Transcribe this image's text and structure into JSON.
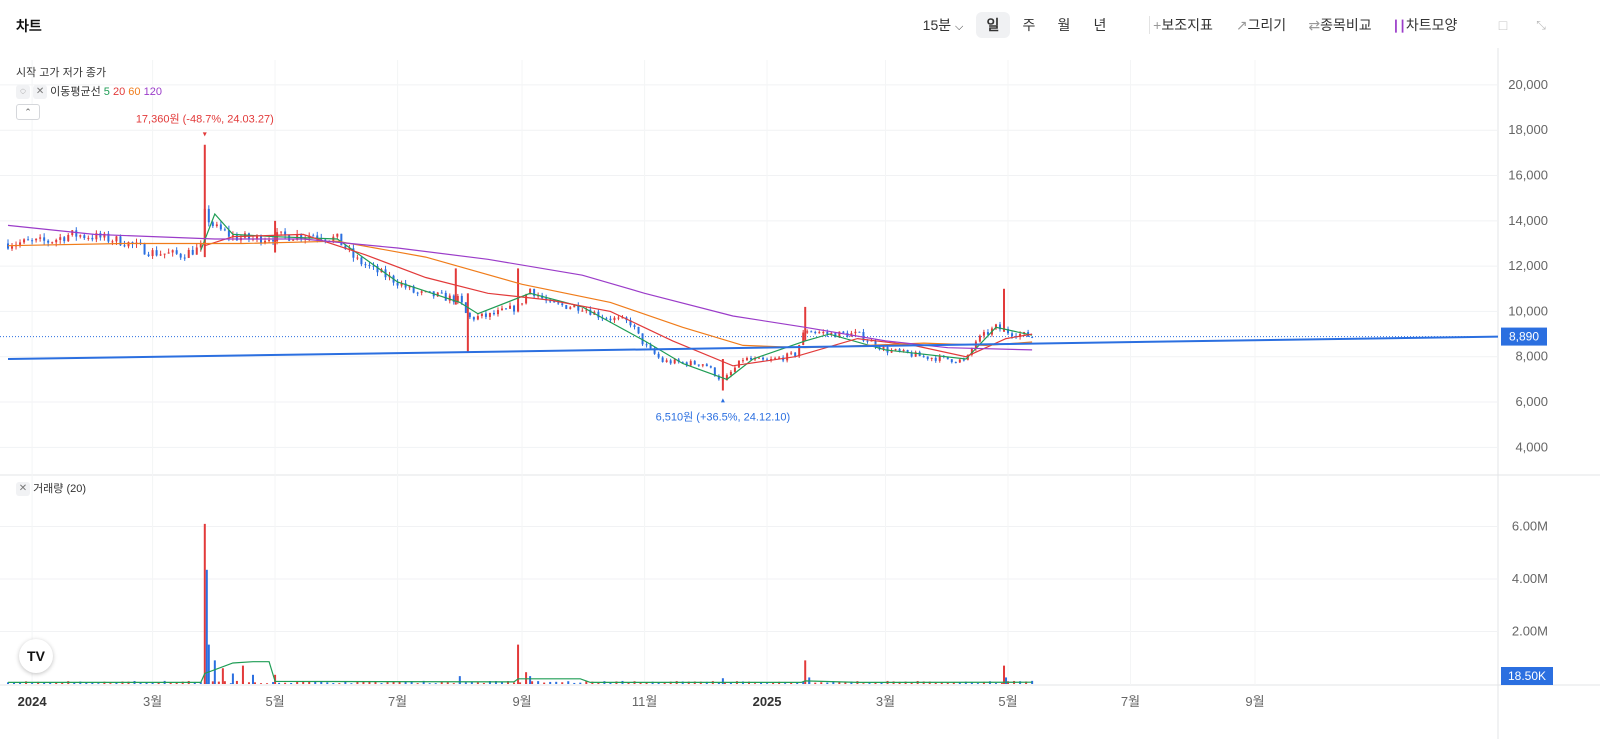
{
  "header": {
    "title": "차트",
    "interval": "15분",
    "periods": [
      "일",
      "주",
      "월",
      "년"
    ],
    "active_period": "일",
    "tools": [
      "보조지표",
      "그리기",
      "종목비교",
      "차트모양"
    ]
  },
  "legend": {
    "ohlc_labels": "시작 고가 저가 종가",
    "ma_label": "이동평균선",
    "ma_periods": [
      "5",
      "20",
      "60",
      "120"
    ],
    "ma_colors": [
      "#1f9d55",
      "#e23a3a",
      "#f07c1a",
      "#9b3cc9"
    ],
    "volume_label": "거래량 (20)"
  },
  "colors": {
    "up": "#e23a3a",
    "down": "#2b6fe0",
    "trendline": "#2b6fe0",
    "volume_ma": "#1f9d55"
  },
  "annotations": {
    "high": "17,360원 (-48.7%, 24.03.27)",
    "low": "6,510원 (+36.5%, 24.12.10)"
  },
  "badges": {
    "last_price": "8,890",
    "last_volume": "18.50K"
  },
  "chart_data": [
    {
      "type": "candlestick",
      "y_ticks": [
        "4,000",
        "6,000",
        "8,000",
        "10,000",
        "12,000",
        "14,000",
        "16,000",
        "18,000",
        "20,000"
      ],
      "y_tick_values": [
        4000,
        6000,
        8000,
        10000,
        12000,
        14000,
        16000,
        18000,
        20000
      ],
      "ylim": [
        3000,
        21100
      ],
      "x_ticks": [
        "2024",
        "3월",
        "5월",
        "7월",
        "9월",
        "11월",
        "2025",
        "3월",
        "5월",
        "7월",
        "9월"
      ],
      "x_tick_dates": [
        "2024-01-01",
        "2024-03-01",
        "2024-05-01",
        "2024-07-01",
        "2024-09-01",
        "2024-11-01",
        "2025-01-01",
        "2025-03-01",
        "2025-05-01",
        "2025-07-01",
        "2025-09-01"
      ],
      "close_path": [
        [
          "2023-12-20",
          13000
        ],
        [
          "2024-01-10",
          13100
        ],
        [
          "2024-01-20",
          13400
        ],
        [
          "2024-02-01",
          13300
        ],
        [
          "2024-02-15",
          13100
        ],
        [
          "2024-03-01",
          12600
        ],
        [
          "2024-03-15",
          12500
        ],
        [
          "2024-03-25",
          12800
        ],
        [
          "2024-03-27",
          14300
        ],
        [
          "2024-04-01",
          13700
        ],
        [
          "2024-04-10",
          13300
        ],
        [
          "2024-04-20",
          13200
        ],
        [
          "2024-05-01",
          13300
        ],
        [
          "2024-05-20",
          13400
        ],
        [
          "2024-06-01",
          13200
        ],
        [
          "2024-06-10",
          12300
        ],
        [
          "2024-06-20",
          11800
        ],
        [
          "2024-07-01",
          11300
        ],
        [
          "2024-07-10",
          10800
        ],
        [
          "2024-07-20",
          10700
        ],
        [
          "2024-08-01",
          10500
        ],
        [
          "2024-08-05",
          9700
        ],
        [
          "2024-08-15",
          9800
        ],
        [
          "2024-08-30",
          10200
        ],
        [
          "2024-09-05",
          11000
        ],
        [
          "2024-09-15",
          10300
        ],
        [
          "2024-10-01",
          10200
        ],
        [
          "2024-10-10",
          9800
        ],
        [
          "2024-10-25",
          9500
        ],
        [
          "2024-11-01",
          8500
        ],
        [
          "2024-11-10",
          7800
        ],
        [
          "2024-11-25",
          7700
        ],
        [
          "2024-12-01",
          7700
        ],
        [
          "2024-12-10",
          6900
        ],
        [
          "2024-12-20",
          7900
        ],
        [
          "2025-01-01",
          7800
        ],
        [
          "2025-01-15",
          8100
        ],
        [
          "2025-01-20",
          9200
        ],
        [
          "2025-02-01",
          9000
        ],
        [
          "2025-02-15",
          9000
        ],
        [
          "2025-03-01",
          8300
        ],
        [
          "2025-03-20",
          8000
        ],
        [
          "2025-04-01",
          7900
        ],
        [
          "2025-04-10",
          7800
        ],
        [
          "2025-04-15",
          8700
        ],
        [
          "2025-04-25",
          9300
        ],
        [
          "2025-05-01",
          9100
        ],
        [
          "2025-05-13",
          8890
        ]
      ],
      "extremes": [
        {
          "date": "2024-03-27",
          "value": 17360
        },
        {
          "date": "2024-12-10",
          "value": 6510
        }
      ],
      "spikes": [
        {
          "date": "2024-03-27",
          "high": 17360,
          "low": 12400
        },
        {
          "date": "2024-05-01",
          "high": 14000,
          "low": 12600
        },
        {
          "date": "2024-07-30",
          "high": 11900,
          "low": 10300
        },
        {
          "date": "2024-08-05",
          "high": 10800,
          "low": 8200
        },
        {
          "date": "2024-08-30",
          "high": 11900,
          "low": 10000
        },
        {
          "date": "2024-12-10",
          "high": 7900,
          "low": 6510
        },
        {
          "date": "2025-01-20",
          "high": 10200,
          "low": 8700
        },
        {
          "date": "2025-04-29",
          "high": 11000,
          "low": 9100
        }
      ],
      "moving_averages": [
        {
          "period": "5",
          "points": [
            [
              "2024-03-25",
              12700
            ],
            [
              "2024-04-01",
              14300
            ],
            [
              "2024-04-10",
              13400
            ],
            [
              "2024-05-01",
              13300
            ],
            [
              "2024-06-01",
              13200
            ],
            [
              "2024-07-01",
              11300
            ],
            [
              "2024-08-01",
              10400
            ],
            [
              "2024-08-10",
              9900
            ],
            [
              "2024-09-05",
              10800
            ],
            [
              "2024-10-01",
              10200
            ],
            [
              "2024-11-01",
              8700
            ],
            [
              "2024-11-20",
              7700
            ],
            [
              "2024-12-12",
              7000
            ],
            [
              "2024-12-25",
              7900
            ],
            [
              "2025-01-20",
              8700
            ],
            [
              "2025-02-01",
              9000
            ],
            [
              "2025-03-01",
              8300
            ],
            [
              "2025-04-10",
              7900
            ],
            [
              "2025-04-25",
              9300
            ],
            [
              "2025-05-13",
              8950
            ]
          ]
        },
        {
          "period": "20",
          "points": [
            [
              "2024-03-27",
              12900
            ],
            [
              "2024-04-10",
              13300
            ],
            [
              "2024-05-15",
              13400
            ],
            [
              "2024-06-15",
              12500
            ],
            [
              "2024-07-15",
              11500
            ],
            [
              "2024-08-15",
              10800
            ],
            [
              "2024-09-15",
              10500
            ],
            [
              "2024-10-15",
              10000
            ],
            [
              "2024-11-15",
              8700
            ],
            [
              "2024-12-15",
              7600
            ],
            [
              "2025-01-15",
              8000
            ],
            [
              "2025-02-15",
              8800
            ],
            [
              "2025-03-15",
              8500
            ],
            [
              "2025-04-10",
              8000
            ],
            [
              "2025-04-30",
              8800
            ],
            [
              "2025-05-13",
              9000
            ]
          ]
        },
        {
          "period": "60",
          "points": [
            [
              "2023-12-20",
              12900
            ],
            [
              "2024-02-15",
              13000
            ],
            [
              "2024-04-15",
              13000
            ],
            [
              "2024-06-01",
              13100
            ],
            [
              "2024-07-15",
              12400
            ],
            [
              "2024-09-01",
              11200
            ],
            [
              "2024-10-15",
              10400
            ],
            [
              "2024-11-20",
              9300
            ],
            [
              "2024-12-20",
              8500
            ],
            [
              "2025-01-20",
              8400
            ],
            [
              "2025-02-20",
              8500
            ],
            [
              "2025-03-20",
              8600
            ],
            [
              "2025-04-20",
              8500
            ],
            [
              "2025-05-13",
              8650
            ]
          ]
        },
        {
          "period": "120",
          "points": [
            [
              "2023-12-20",
              13800
            ],
            [
              "2024-02-01",
              13400
            ],
            [
              "2024-04-01",
              13200
            ],
            [
              "2024-05-15",
              13200
            ],
            [
              "2024-07-01",
              12800
            ],
            [
              "2024-08-15",
              12300
            ],
            [
              "2024-10-01",
              11600
            ],
            [
              "2024-11-01",
              10800
            ],
            [
              "2024-12-15",
              9800
            ],
            [
              "2025-01-20",
              9300
            ],
            [
              "2025-03-01",
              8700
            ],
            [
              "2025-04-01",
              8400
            ],
            [
              "2025-05-13",
              8300
            ]
          ]
        }
      ],
      "trendline": [
        [
          "2023-12-20",
          7900
        ],
        [
          "2025-12-31",
          8890
        ]
      ],
      "last_price": 8890
    },
    {
      "type": "bar",
      "series_name": "거래량",
      "y_ticks": [
        "2.00M",
        "4.00M",
        "6.00M"
      ],
      "y_tick_values": [
        2000000,
        4000000,
        6000000
      ],
      "ylim": [
        0,
        7200000
      ],
      "values": [
        {
          "date": "2024-03-27",
          "value": 6100000,
          "dir": "up"
        },
        {
          "date": "2024-03-28",
          "value": 4350000,
          "dir": "down"
        },
        {
          "date": "2024-03-29",
          "value": 1500000,
          "dir": "down"
        },
        {
          "date": "2024-04-01",
          "value": 900000,
          "dir": "down"
        },
        {
          "date": "2024-04-05",
          "value": 600000,
          "dir": "up"
        },
        {
          "date": "2024-04-10",
          "value": 400000,
          "dir": "down"
        },
        {
          "date": "2024-04-15",
          "value": 700000,
          "dir": "up"
        },
        {
          "date": "2024-04-20",
          "value": 350000,
          "dir": "down"
        },
        {
          "date": "2024-05-01",
          "value": 350000,
          "dir": "up"
        },
        {
          "date": "2024-08-01",
          "value": 300000,
          "dir": "down"
        },
        {
          "date": "2024-08-30",
          "value": 1500000,
          "dir": "up"
        },
        {
          "date": "2024-09-03",
          "value": 450000,
          "dir": "up"
        },
        {
          "date": "2024-09-05",
          "value": 300000,
          "dir": "down"
        },
        {
          "date": "2024-12-10",
          "value": 220000,
          "dir": "down"
        },
        {
          "date": "2025-01-20",
          "value": 900000,
          "dir": "up"
        },
        {
          "date": "2025-01-22",
          "value": 250000,
          "dir": "down"
        },
        {
          "date": "2025-04-29",
          "value": 700000,
          "dir": "up"
        },
        {
          "date": "2025-04-30",
          "value": 250000,
          "dir": "down"
        }
      ],
      "ma": [
        [
          "2023-12-20",
          60000
        ],
        [
          "2024-03-25",
          60000
        ],
        [
          "2024-03-27",
          400000
        ],
        [
          "2024-04-10",
          800000
        ],
        [
          "2024-04-20",
          850000
        ],
        [
          "2024-04-28",
          850000
        ],
        [
          "2024-05-01",
          100000
        ],
        [
          "2024-08-28",
          80000
        ],
        [
          "2024-08-30",
          200000
        ],
        [
          "2024-09-30",
          200000
        ],
        [
          "2024-10-05",
          60000
        ],
        [
          "2025-01-18",
          60000
        ],
        [
          "2025-01-20",
          120000
        ],
        [
          "2025-02-15",
          60000
        ],
        [
          "2025-05-13",
          70000
        ]
      ],
      "last_volume": 18500
    }
  ]
}
